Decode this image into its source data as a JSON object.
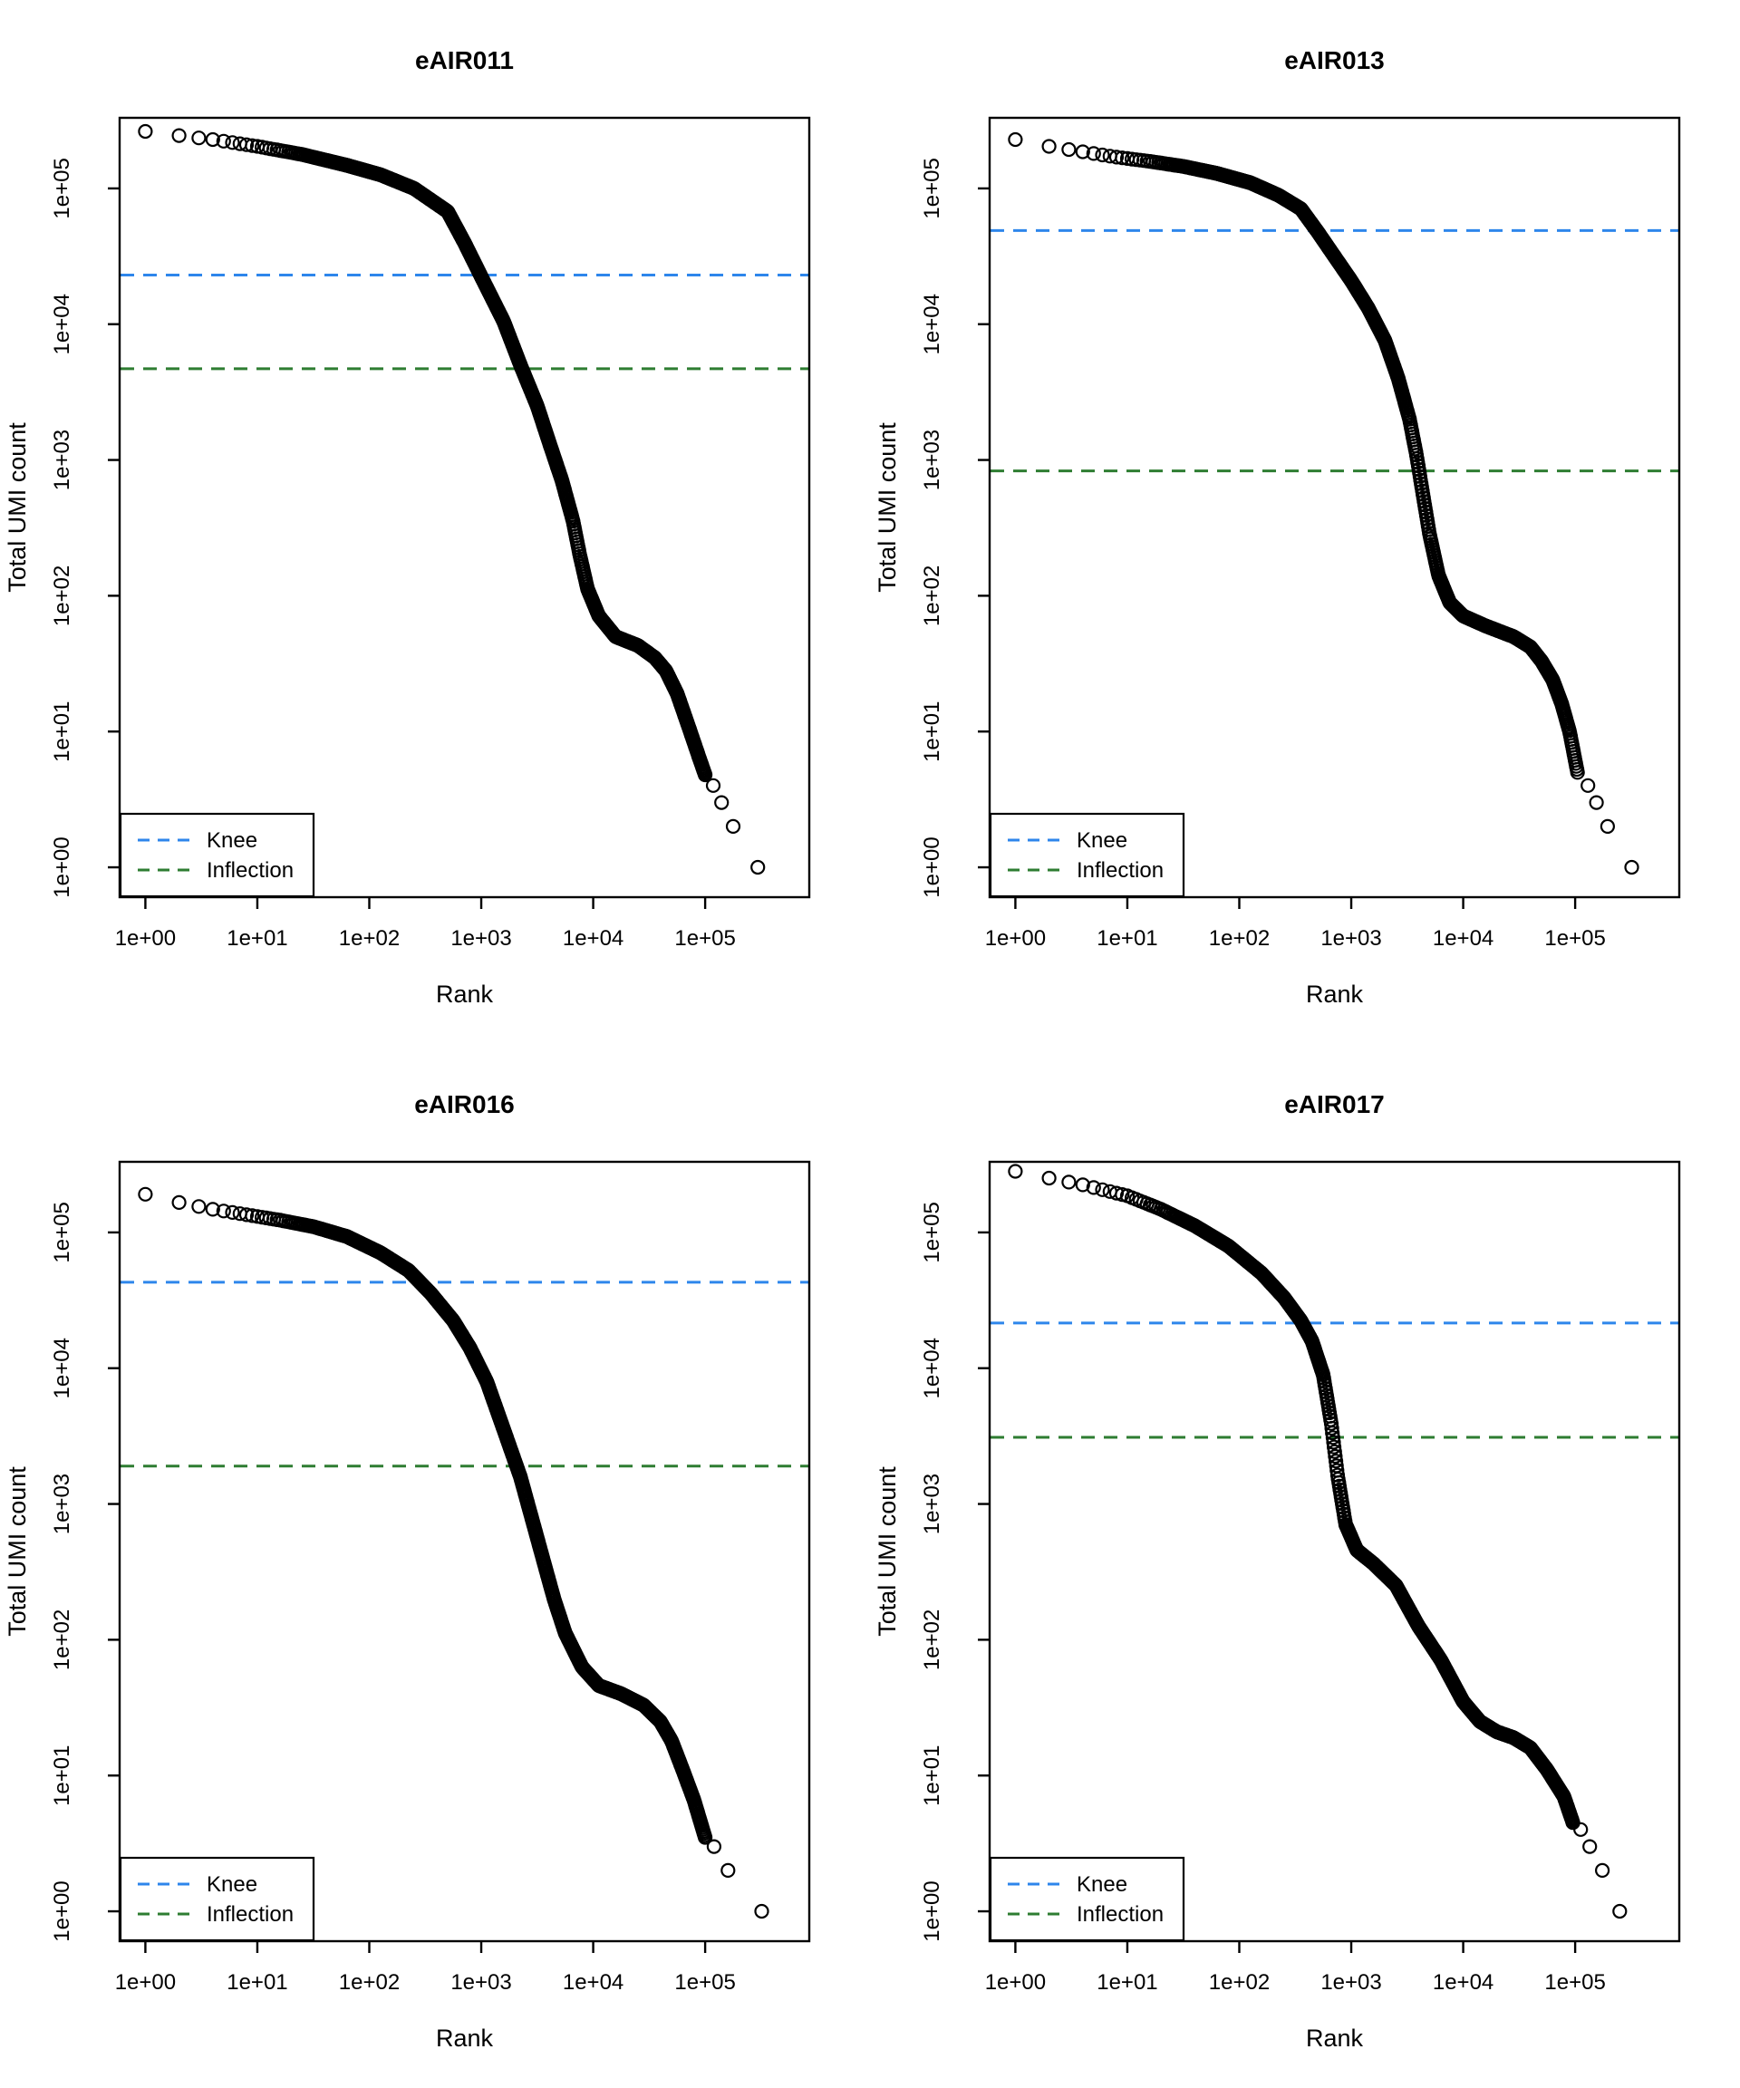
{
  "page": {
    "background": "#ffffff"
  },
  "colors": {
    "knee": "#2E86EB",
    "inflection": "#2E7D32",
    "points": "#000000",
    "axis": "#000000",
    "plot_background": "#ffffff"
  },
  "legend": {
    "items": [
      {
        "label": "Knee",
        "color_key": "knee"
      },
      {
        "label": "Inflection",
        "color_key": "inflection"
      }
    ]
  },
  "layout": {
    "x_tick_labels": [
      "1e+00",
      "1e+01",
      "1e+02",
      "1e+03",
      "1e+04",
      "1e+05"
    ],
    "y_tick_labels": [
      "1e+00",
      "1e+01",
      "1e+02",
      "1e+03",
      "1e+04",
      "1e+05"
    ]
  },
  "chart_data": [
    {
      "type": "scatter",
      "title": "eAIR011",
      "xlabel": "Rank",
      "ylabel": "Total UMI count",
      "xscale": "log",
      "yscale": "log",
      "xlim": [
        0.59,
        850000
      ],
      "ylim": [
        0.6,
        331000
      ],
      "x_ticks": [
        1,
        10,
        100,
        1000,
        10000,
        100000
      ],
      "y_ticks": [
        1,
        10,
        100,
        1000,
        10000,
        100000
      ],
      "knee": 23000,
      "inflection": 4700,
      "legend_position": "bottomleft",
      "curve_points": [
        [
          1,
          263000
        ],
        [
          2,
          245000
        ],
        [
          4,
          229000
        ],
        [
          10,
          204000
        ],
        [
          25,
          178000
        ],
        [
          63,
          148000
        ],
        [
          126,
          126000
        ],
        [
          251,
          100000
        ],
        [
          501,
          67600
        ],
        [
          708,
          39800
        ],
        [
          1000,
          22400
        ],
        [
          1585,
          10500
        ],
        [
          2239,
          5000
        ],
        [
          3162,
          2500
        ],
        [
          4169,
          1250
        ],
        [
          5248,
          710
        ],
        [
          6607,
          355
        ],
        [
          7586,
          200
        ],
        [
          8913,
          112
        ],
        [
          11220,
          71
        ],
        [
          15849,
          50
        ],
        [
          25119,
          43
        ],
        [
          35481,
          35
        ],
        [
          44668,
          28
        ],
        [
          56234,
          19
        ],
        [
          70795,
          11
        ],
        [
          89125,
          6.3
        ],
        [
          100000,
          4.8
        ]
      ],
      "tail_points": [
        [
          118000,
          4
        ],
        [
          140000,
          3
        ],
        [
          178000,
          2
        ],
        [
          295000,
          1
        ]
      ]
    },
    {
      "type": "scatter",
      "title": "eAIR013",
      "xlabel": "Rank",
      "ylabel": "Total UMI count",
      "xscale": "log",
      "yscale": "log",
      "xlim": [
        0.59,
        850000
      ],
      "ylim": [
        0.6,
        331000
      ],
      "x_ticks": [
        1,
        10,
        100,
        1000,
        10000,
        100000
      ],
      "y_ticks": [
        1,
        10,
        100,
        1000,
        10000,
        100000
      ],
      "knee": 49000,
      "inflection": 830,
      "legend_position": "bottomleft",
      "curve_points": [
        [
          1,
          229000
        ],
        [
          2,
          204000
        ],
        [
          4,
          186000
        ],
        [
          8,
          170000
        ],
        [
          16,
          158000
        ],
        [
          32,
          145000
        ],
        [
          63,
          129000
        ],
        [
          126,
          110000
        ],
        [
          224,
          89100
        ],
        [
          355,
          70800
        ],
        [
          501,
          47900
        ],
        [
          708,
          31600
        ],
        [
          1000,
          20900
        ],
        [
          1413,
          13200
        ],
        [
          2000,
          7590
        ],
        [
          2630,
          3980
        ],
        [
          3311,
          2000
        ],
        [
          3802,
          1120
        ],
        [
          4365,
          560
        ],
        [
          5012,
          282
        ],
        [
          6026,
          141
        ],
        [
          7586,
          89
        ],
        [
          10000,
          71
        ],
        [
          15849,
          60
        ],
        [
          28184,
          50
        ],
        [
          39811,
          42
        ],
        [
          50119,
          33
        ],
        [
          63096,
          24
        ],
        [
          75858,
          16
        ],
        [
          89125,
          10
        ],
        [
          105000,
          5
        ]
      ],
      "tail_points": [
        [
          130000,
          4
        ],
        [
          155000,
          3
        ],
        [
          195000,
          2
        ],
        [
          320000,
          1
        ]
      ]
    },
    {
      "type": "scatter",
      "title": "eAIR016",
      "xlabel": "Rank",
      "ylabel": "Total UMI count",
      "xscale": "log",
      "yscale": "log",
      "xlim": [
        0.59,
        850000
      ],
      "ylim": [
        0.6,
        331000
      ],
      "x_ticks": [
        1,
        10,
        100,
        1000,
        10000,
        100000
      ],
      "y_ticks": [
        1,
        10,
        100,
        1000,
        10000,
        100000
      ],
      "knee": 43000,
      "inflection": 1900,
      "legend_position": "bottomleft",
      "curve_points": [
        [
          1,
          191000
        ],
        [
          2,
          166000
        ],
        [
          4,
          148000
        ],
        [
          8,
          135000
        ],
        [
          16,
          123000
        ],
        [
          32,
          110000
        ],
        [
          63,
          93300
        ],
        [
          126,
          70800
        ],
        [
          224,
          52500
        ],
        [
          355,
          35500
        ],
        [
          562,
          22400
        ],
        [
          794,
          14100
        ],
        [
          1122,
          7940
        ],
        [
          1585,
          3550
        ],
        [
          2239,
          1580
        ],
        [
          2818,
          794
        ],
        [
          3548,
          398
        ],
        [
          4467,
          200
        ],
        [
          5623,
          112
        ],
        [
          7943,
          63
        ],
        [
          11220,
          46
        ],
        [
          17783,
          40
        ],
        [
          28184,
          33
        ],
        [
          39811,
          25
        ],
        [
          50119,
          18
        ],
        [
          63096,
          11
        ],
        [
          79433,
          6.6
        ],
        [
          100000,
          3.5
        ]
      ],
      "tail_points": [
        [
          120000,
          3
        ],
        [
          160000,
          2
        ],
        [
          320000,
          1
        ]
      ]
    },
    {
      "type": "scatter",
      "title": "eAIR017",
      "xlabel": "Rank",
      "ylabel": "Total UMI count",
      "xscale": "log",
      "yscale": "log",
      "xlim": [
        0.59,
        850000
      ],
      "ylim": [
        0.6,
        331000
      ],
      "x_ticks": [
        1,
        10,
        100,
        1000,
        10000,
        100000
      ],
      "y_ticks": [
        1,
        10,
        100,
        1000,
        10000,
        100000
      ],
      "knee": 21500,
      "inflection": 3100,
      "legend_position": "bottomleft",
      "curve_points": [
        [
          1,
          282000
        ],
        [
          2,
          251000
        ],
        [
          4,
          224000
        ],
        [
          10,
          186000
        ],
        [
          20,
          148000
        ],
        [
          40,
          112000
        ],
        [
          80,
          79400
        ],
        [
          158,
          50100
        ],
        [
          251,
          33100
        ],
        [
          355,
          22400
        ],
        [
          447,
          15800
        ],
        [
          562,
          8910
        ],
        [
          661,
          3980
        ],
        [
          759,
          1580
        ],
        [
          891,
          708
        ],
        [
          1122,
          457
        ],
        [
          1585,
          363
        ],
        [
          2512,
          251
        ],
        [
          3981,
          126
        ],
        [
          6310,
          71
        ],
        [
          10000,
          35
        ],
        [
          14125,
          25
        ],
        [
          19953,
          21
        ],
        [
          28184,
          19
        ],
        [
          39811,
          16
        ],
        [
          56234,
          11
        ],
        [
          79433,
          7
        ],
        [
          95500,
          4.5
        ]
      ],
      "tail_points": [
        [
          112000,
          4
        ],
        [
          135000,
          3
        ],
        [
          175000,
          2
        ],
        [
          250000,
          1
        ]
      ]
    }
  ]
}
